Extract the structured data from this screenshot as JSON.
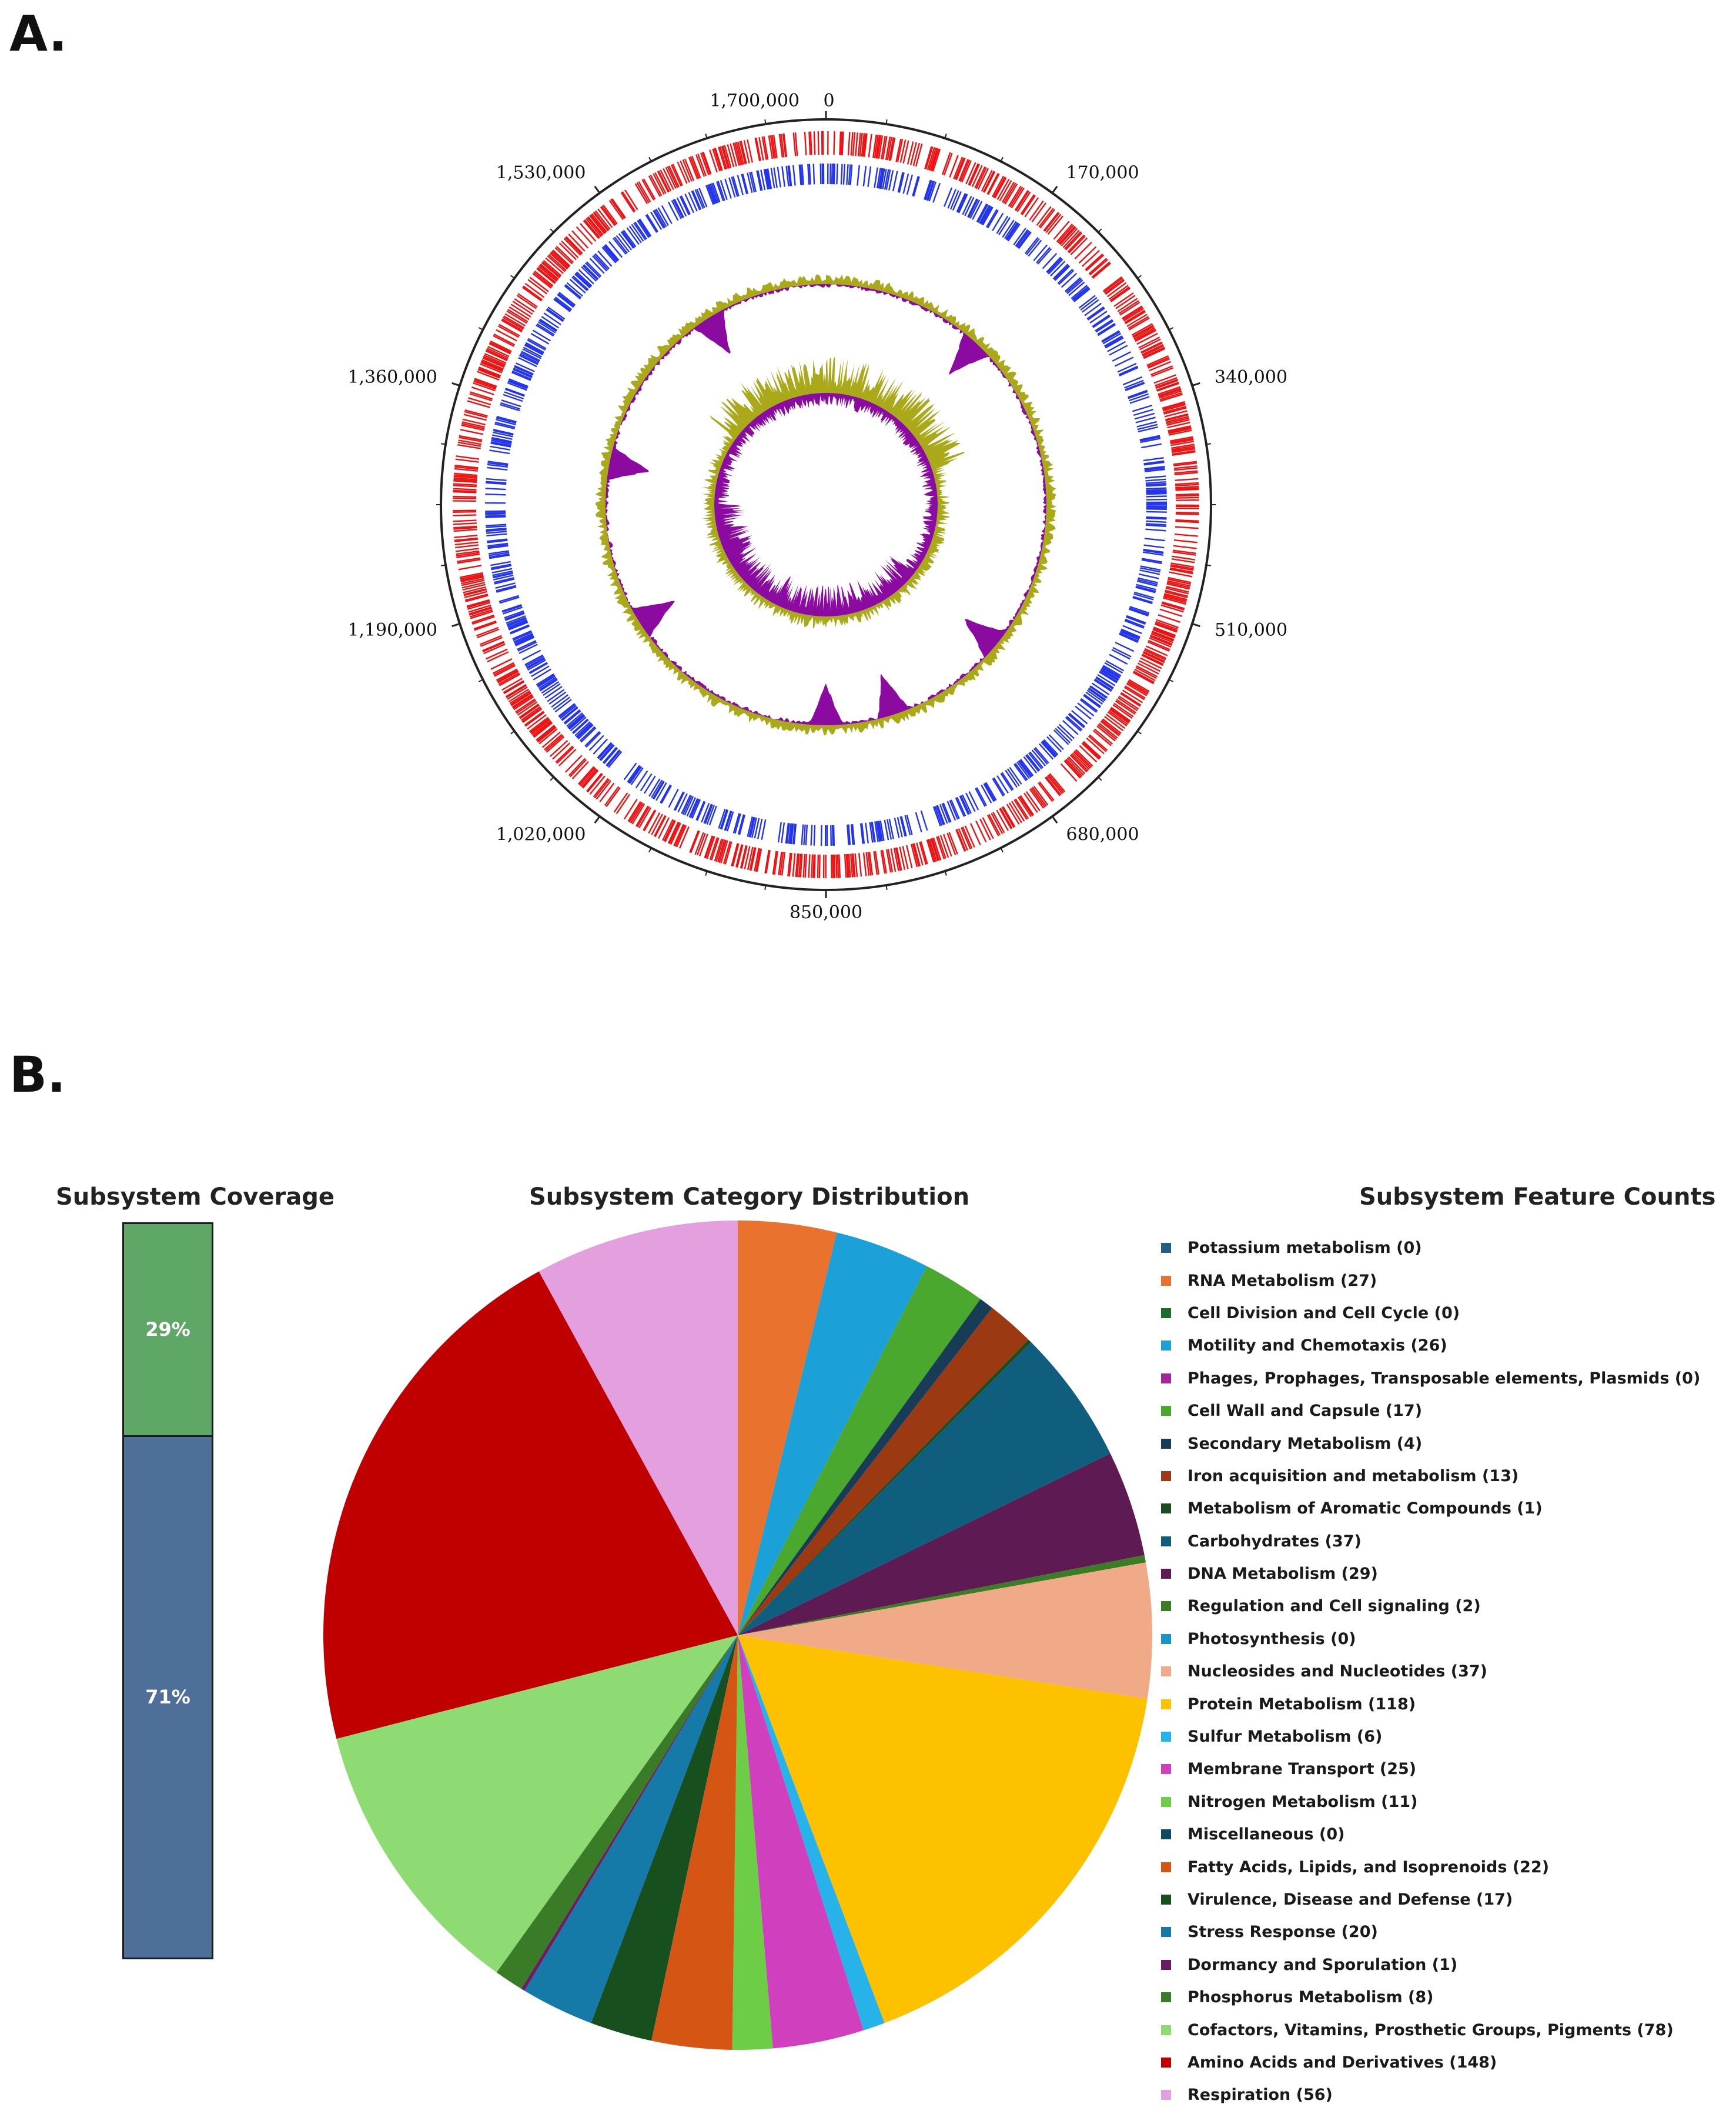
{
  "panel_a": {
    "letter": "A.",
    "chart_data": {
      "type": "circular-genome-map",
      "genome_length": 1700000,
      "tick_labels": [
        "0",
        "170,000",
        "340,000",
        "510,000",
        "680,000",
        "850,000",
        "1,020,000",
        "1,190,000",
        "1,360,000",
        "1,530,000",
        "1,700,000"
      ],
      "tick_positions_bp": [
        0,
        170000,
        340000,
        510000,
        680000,
        850000,
        1020000,
        1190000,
        1360000,
        1530000,
        1700000
      ],
      "tracks": [
        {
          "name": "CDS forward strand",
          "color": "#ee1111"
        },
        {
          "name": "CDS reverse strand",
          "color": "#2233ee"
        },
        {
          "name": "GC content",
          "positive_color": "#a9a919",
          "negative_color": "#8b0aa0"
        },
        {
          "name": "GC skew",
          "positive_color": "#a9a919",
          "negative_color": "#8b0aa0"
        }
      ]
    }
  },
  "panel_b": {
    "letter": "B.",
    "coverage": {
      "title": "Subsystem Coverage",
      "chart_data": {
        "type": "stacked-bar",
        "segments": [
          {
            "label": "29%",
            "value": 29,
            "color": "#5ea767"
          },
          {
            "label": "71%",
            "value": 71,
            "color": "#4e7098"
          }
        ]
      }
    },
    "distribution": {
      "title": "Subsystem Category Distribution",
      "legend_title": "Subsystem Feature Counts",
      "chart_data": {
        "type": "pie",
        "start_angle_deg": 0,
        "direction": "clockwise",
        "categories": [
          "Potassium metabolism",
          "RNA Metabolism",
          "Cell Division and Cell Cycle",
          "Motility and Chemotaxis",
          "Phages, Prophages, Transposable elements, Plasmids",
          "Cell Wall and Capsule",
          "Secondary Metabolism",
          "Iron acquisition and metabolism",
          "Metabolism of Aromatic Compounds",
          "Carbohydrates",
          "DNA Metabolism",
          "Regulation and Cell signaling",
          "Photosynthesis",
          "Nucleosides and Nucleotides",
          "Protein Metabolism",
          "Sulfur Metabolism",
          "Membrane Transport",
          "Nitrogen Metabolism",
          "Miscellaneous",
          "Fatty Acids, Lipids, and Isoprenoids",
          "Virulence, Disease and Defense",
          "Stress Response",
          "Dormancy and Sporulation",
          "Phosphorus Metabolism",
          "Cofactors, Vitamins, Prosthetic Groups, Pigments",
          "Amino Acids and Derivatives",
          "Respiration"
        ],
        "values": [
          0,
          27,
          0,
          26,
          0,
          17,
          4,
          13,
          1,
          37,
          29,
          2,
          0,
          37,
          118,
          6,
          25,
          11,
          0,
          22,
          17,
          20,
          1,
          8,
          78,
          148,
          56
        ],
        "legend_labels": [
          "Potassium metabolism (0)",
          "RNA Metabolism (27)",
          "Cell Division and Cell Cycle (0)",
          "Motility and Chemotaxis (26)",
          "Phages, Prophages, Transposable elements, Plasmids (0)",
          "Cell Wall and Capsule (17)",
          "Secondary Metabolism (4)",
          "Iron acquisition and metabolism (13)",
          "Metabolism of Aromatic Compounds (1)",
          "Carbohydrates (37)",
          "DNA Metabolism (29)",
          "Regulation and Cell signaling (2)",
          "Photosynthesis (0)",
          "Nucleosides and Nucleotides (37)",
          "Protein Metabolism (118)",
          "Sulfur Metabolism (6)",
          "Membrane Transport (25)",
          "Nitrogen Metabolism (11)",
          "Miscellaneous (0)",
          "Fatty Acids, Lipids, and Isoprenoids (22)",
          "Virulence, Disease and Defense (17)",
          "Stress Response (20)",
          "Dormancy and Sporulation (1)",
          "Phosphorus Metabolism (8)",
          "Cofactors, Vitamins, Prosthetic Groups, Pigments (78)",
          "Amino Acids and Derivatives (148)",
          "Respiration (56)"
        ],
        "colors": [
          "#1f5f7f",
          "#e8722e",
          "#1e6b2e",
          "#1ba0d8",
          "#a3259c",
          "#4aa82e",
          "#183c56",
          "#9b3a12",
          "#1b4d1e",
          "#105e7e",
          "#5e1a52",
          "#3a7d23",
          "#1595c8",
          "#f0aa88",
          "#fdc100",
          "#27b2ea",
          "#cf3fbe",
          "#6dcd47",
          "#0e4a63",
          "#d55515",
          "#174f1f",
          "#157aa8",
          "#6b1c63",
          "#3a7b27",
          "#8fdb73",
          "#c00000",
          "#e39fde"
        ]
      }
    }
  }
}
